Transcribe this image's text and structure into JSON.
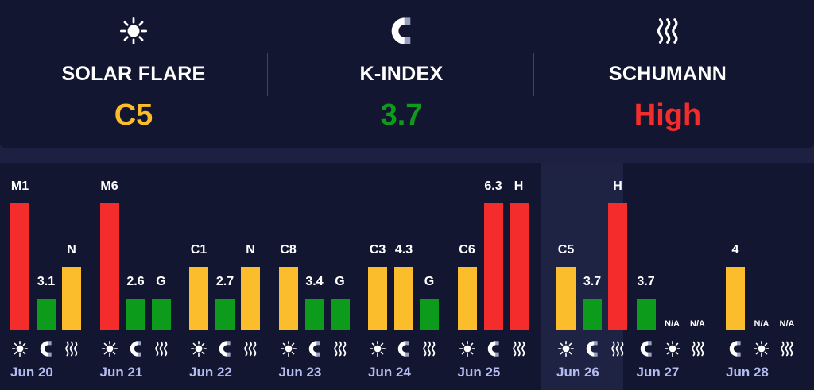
{
  "colors": {
    "red": "#f52c2c",
    "yellow": "#fbbd2c",
    "green": "#0c9b1a",
    "date_text": "#b4bcf0"
  },
  "summary": [
    {
      "key": "solar",
      "icon": "sun-icon",
      "label": "SOLAR FLARE",
      "value": "C5",
      "color": "#fbbd2c"
    },
    {
      "key": "kindex",
      "icon": "magnet-icon",
      "label": "K-INDEX",
      "value": "3.7",
      "color": "#0c9b1a"
    },
    {
      "key": "schumann",
      "icon": "wave-icon",
      "label": "SCHUMANN",
      "value": "High",
      "color": "#f52c2c"
    }
  ],
  "days": [
    {
      "date": "Jun 20",
      "today": false,
      "solar": {
        "label": "M1",
        "level": 1.0,
        "color": "red"
      },
      "kindex": {
        "label": "3.1",
        "level": 0.25,
        "color": "green"
      },
      "schumann": {
        "label": "N",
        "level": 0.5,
        "color": "yellow"
      },
      "icon_order": [
        "solar",
        "kindex",
        "schumann"
      ]
    },
    {
      "date": "Jun 21",
      "today": false,
      "solar": {
        "label": "M6",
        "level": 1.0,
        "color": "red"
      },
      "kindex": {
        "label": "2.6",
        "level": 0.25,
        "color": "green"
      },
      "schumann": {
        "label": "G",
        "level": 0.25,
        "color": "green"
      },
      "icon_order": [
        "solar",
        "kindex",
        "schumann"
      ]
    },
    {
      "date": "Jun 22",
      "today": false,
      "solar": {
        "label": "C1",
        "level": 0.5,
        "color": "yellow"
      },
      "kindex": {
        "label": "2.7",
        "level": 0.25,
        "color": "green"
      },
      "schumann": {
        "label": "N",
        "level": 0.5,
        "color": "yellow"
      },
      "icon_order": [
        "solar",
        "kindex",
        "schumann"
      ]
    },
    {
      "date": "Jun 23",
      "today": false,
      "solar": {
        "label": "C8",
        "level": 0.5,
        "color": "yellow"
      },
      "kindex": {
        "label": "3.4",
        "level": 0.25,
        "color": "green"
      },
      "schumann": {
        "label": "G",
        "level": 0.25,
        "color": "green"
      },
      "icon_order": [
        "solar",
        "kindex",
        "schumann"
      ]
    },
    {
      "date": "Jun 24",
      "today": false,
      "solar": {
        "label": "C3",
        "level": 0.5,
        "color": "yellow"
      },
      "kindex": {
        "label": "4.3",
        "level": 0.5,
        "color": "yellow"
      },
      "schumann": {
        "label": "G",
        "level": 0.25,
        "color": "green"
      },
      "icon_order": [
        "solar",
        "kindex",
        "schumann"
      ]
    },
    {
      "date": "Jun 25",
      "today": false,
      "solar": {
        "label": "C6",
        "level": 0.5,
        "color": "yellow"
      },
      "kindex": {
        "label": "6.3",
        "level": 1.0,
        "color": "red"
      },
      "schumann": {
        "label": "H",
        "level": 1.0,
        "color": "red"
      },
      "icon_order": [
        "solar",
        "kindex",
        "schumann"
      ]
    },
    {
      "date": "Jun 26",
      "today": true,
      "solar": {
        "label": "C5",
        "level": 0.5,
        "color": "yellow"
      },
      "kindex": {
        "label": "3.7",
        "level": 0.25,
        "color": "green"
      },
      "schumann": {
        "label": "H",
        "level": 1.0,
        "color": "red"
      },
      "icon_order": [
        "solar",
        "kindex",
        "schumann"
      ]
    },
    {
      "date": "Jun 27",
      "today": false,
      "kindex": {
        "label": "3.7",
        "level": 0.25,
        "color": "green"
      },
      "solar": {
        "label": "N/A",
        "level": 0,
        "color": "none"
      },
      "schumann": {
        "label": "N/A",
        "level": 0,
        "color": "none"
      },
      "icon_order": [
        "kindex",
        "solar",
        "schumann"
      ]
    },
    {
      "date": "Jun 28",
      "today": false,
      "kindex": {
        "label": "4",
        "level": 0.5,
        "color": "yellow"
      },
      "solar": {
        "label": "N/A",
        "level": 0,
        "color": "none"
      },
      "schumann": {
        "label": "N/A",
        "level": 0,
        "color": "none"
      },
      "icon_order": [
        "kindex",
        "solar",
        "schumann"
      ]
    }
  ]
}
